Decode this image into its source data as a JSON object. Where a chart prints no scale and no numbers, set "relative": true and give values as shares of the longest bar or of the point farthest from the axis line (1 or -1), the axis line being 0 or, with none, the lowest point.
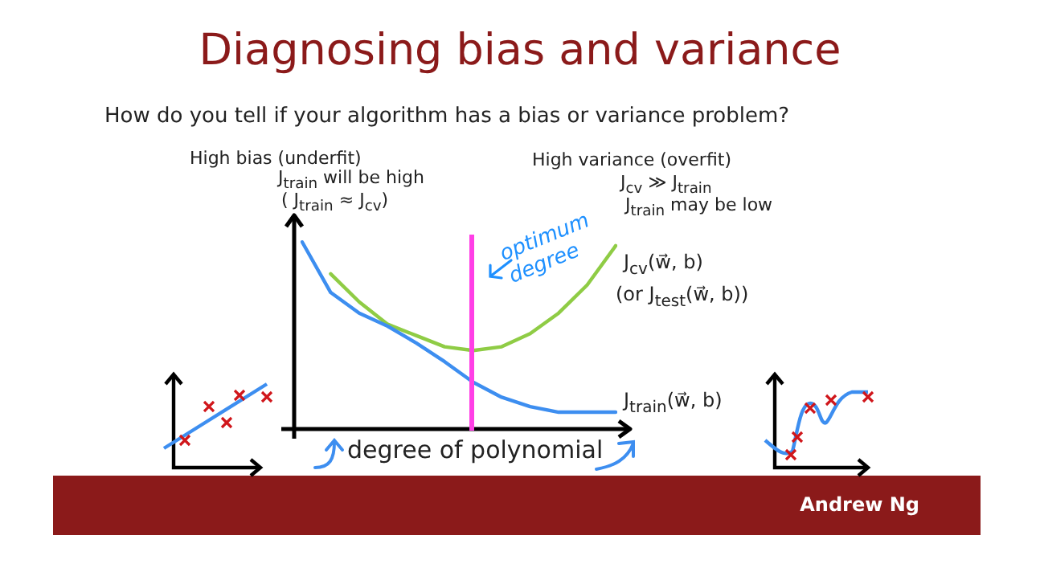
{
  "chart_data": {
    "type": "line",
    "title": "Diagnosing bias and variance",
    "subtitle": "How do you tell if your algorithm has a bias or variance problem?",
    "xlabel": "degree of polynomial",
    "relative": true,
    "tick_labels": false,
    "grid": false,
    "marker": "none",
    "line_style": "solid",
    "categories": [
      null,
      null,
      null,
      null,
      null,
      null,
      null,
      null,
      null,
      null,
      null,
      null
    ],
    "series": [
      {
        "name": "J$_{train}$(w⃗, b)",
        "color": "#3d8ef0",
        "values": [
          1.0,
          0.73,
          0.62,
          0.55,
          0.46,
          0.36,
          0.25,
          0.17,
          0.12,
          0.09,
          0.09,
          0.09
        ]
      },
      {
        "name": "J$_{cv}$(w⃗, b)",
        "color": "#8fcc45",
        "values": [
          null,
          0.83,
          0.68,
          0.56,
          0.5,
          0.44,
          0.42,
          0.44,
          0.51,
          0.62,
          0.77,
          0.98
        ]
      }
    ],
    "annotations": [
      "High bias (underfit)",
      "J$_{train}$ will be high",
      "( J$_{train}$ ≈ J$_{cv}$)",
      "High variance (overfit)",
      "J$_{cv}$ ≫ J$_{train}$",
      "J$_{train}$ may be low",
      "(or J$_{test}$(w⃗, b))",
      "Andrew Ng",
      "optimum degree"
    ]
  }
}
